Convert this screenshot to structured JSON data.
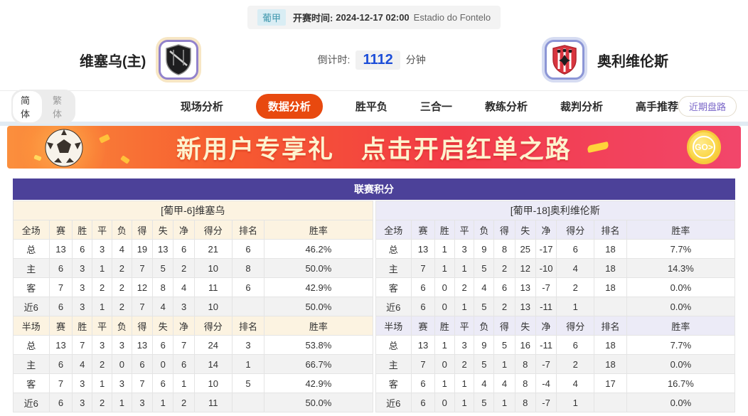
{
  "header": {
    "league_badge": "葡甲",
    "kickoff_label": "开赛时间:",
    "kickoff_time": "2024-12-17 02:00",
    "venue": "Estadio do Fontelo",
    "home_team": "维塞乌(主)",
    "away_team": "奥利维伦斯",
    "countdown_label": "倒计时:",
    "countdown_value": "1112",
    "countdown_unit": "分钟"
  },
  "nav": {
    "lang_simplified": "简体",
    "lang_traditional": "繁体",
    "items": [
      {
        "label": "现场分析",
        "active": false
      },
      {
        "label": "数据分析",
        "active": true
      },
      {
        "label": "胜平负",
        "active": false
      },
      {
        "label": "三合一",
        "active": false
      },
      {
        "label": "教练分析",
        "active": false
      },
      {
        "label": "裁判分析",
        "active": false
      },
      {
        "label": "高手推荐",
        "active": false
      }
    ],
    "recent_trends": "近期盘路"
  },
  "banner": {
    "text_left": "新用户专享礼",
    "text_right": "点击开启红单之路",
    "go_label": "GO>"
  },
  "league_table": {
    "title": "联赛积分",
    "sides": [
      {
        "id": "home",
        "theme": "cream",
        "team_header": "[葡甲-6]维塞乌",
        "sections": [
          {
            "first_col": "全场",
            "columns": [
              "赛",
              "胜",
              "平",
              "负",
              "得",
              "失",
              "净",
              "得分",
              "排名",
              "胜率"
            ],
            "rows": [
              {
                "label": "总",
                "key": "total",
                "values": [
                  "13",
                  "6",
                  "3",
                  "4",
                  "19",
                  "13",
                  "6",
                  "21",
                  "6",
                  "46.2%"
                ]
              },
              {
                "label": "主",
                "key": "home",
                "values": [
                  "6",
                  "3",
                  "1",
                  "2",
                  "7",
                  "5",
                  "2",
                  "10",
                  "8",
                  "50.0%"
                ]
              },
              {
                "label": "客",
                "key": "away",
                "values": [
                  "7",
                  "3",
                  "2",
                  "2",
                  "12",
                  "8",
                  "4",
                  "11",
                  "6",
                  "42.9%"
                ]
              },
              {
                "label": "近6",
                "key": "recent",
                "values": [
                  "6",
                  "3",
                  "1",
                  "2",
                  "7",
                  "4",
                  "3",
                  "10",
                  "",
                  "50.0%"
                ]
              }
            ]
          },
          {
            "first_col": "半场",
            "columns": [
              "赛",
              "胜",
              "平",
              "负",
              "得",
              "失",
              "净",
              "得分",
              "排名",
              "胜率"
            ],
            "rows": [
              {
                "label": "总",
                "key": "total",
                "values": [
                  "13",
                  "7",
                  "3",
                  "3",
                  "13",
                  "6",
                  "7",
                  "24",
                  "3",
                  "53.8%"
                ]
              },
              {
                "label": "主",
                "key": "home",
                "values": [
                  "6",
                  "4",
                  "2",
                  "0",
                  "6",
                  "0",
                  "6",
                  "14",
                  "1",
                  "66.7%"
                ]
              },
              {
                "label": "客",
                "key": "away",
                "values": [
                  "7",
                  "3",
                  "1",
                  "3",
                  "7",
                  "6",
                  "1",
                  "10",
                  "5",
                  "42.9%"
                ]
              },
              {
                "label": "近6",
                "key": "recent",
                "values": [
                  "6",
                  "3",
                  "2",
                  "1",
                  "3",
                  "1",
                  "2",
                  "11",
                  "",
                  "50.0%"
                ]
              }
            ]
          }
        ]
      },
      {
        "id": "away",
        "theme": "lav",
        "team_header": "[葡甲-18]奥利维伦斯",
        "sections": [
          {
            "first_col": "全场",
            "columns": [
              "赛",
              "胜",
              "平",
              "负",
              "得",
              "失",
              "净",
              "得分",
              "排名",
              "胜率"
            ],
            "rows": [
              {
                "label": "总",
                "key": "total",
                "values": [
                  "13",
                  "1",
                  "3",
                  "9",
                  "8",
                  "25",
                  "-17",
                  "6",
                  "18",
                  "7.7%"
                ]
              },
              {
                "label": "主",
                "key": "home",
                "values": [
                  "7",
                  "1",
                  "1",
                  "5",
                  "2",
                  "12",
                  "-10",
                  "4",
                  "18",
                  "14.3%"
                ]
              },
              {
                "label": "客",
                "key": "away",
                "values": [
                  "6",
                  "0",
                  "2",
                  "4",
                  "6",
                  "13",
                  "-7",
                  "2",
                  "18",
                  "0.0%"
                ]
              },
              {
                "label": "近6",
                "key": "recent",
                "values": [
                  "6",
                  "0",
                  "1",
                  "5",
                  "2",
                  "13",
                  "-11",
                  "1",
                  "",
                  "0.0%"
                ]
              }
            ]
          },
          {
            "first_col": "半场",
            "columns": [
              "赛",
              "胜",
              "平",
              "负",
              "得",
              "失",
              "净",
              "得分",
              "排名",
              "胜率"
            ],
            "rows": [
              {
                "label": "总",
                "key": "total",
                "values": [
                  "13",
                  "1",
                  "3",
                  "9",
                  "5",
                  "16",
                  "-11",
                  "6",
                  "18",
                  "7.7%"
                ]
              },
              {
                "label": "主",
                "key": "home",
                "values": [
                  "7",
                  "0",
                  "2",
                  "5",
                  "1",
                  "8",
                  "-7",
                  "2",
                  "18",
                  "0.0%"
                ]
              },
              {
                "label": "客",
                "key": "away",
                "values": [
                  "6",
                  "1",
                  "1",
                  "4",
                  "4",
                  "8",
                  "-4",
                  "4",
                  "17",
                  "16.7%"
                ]
              },
              {
                "label": "近6",
                "key": "recent",
                "values": [
                  "6",
                  "0",
                  "1",
                  "5",
                  "1",
                  "8",
                  "-7",
                  "1",
                  "",
                  "0.0%"
                ]
              }
            ]
          }
        ]
      }
    ]
  },
  "colors": {
    "title_purple": "#4c4199",
    "nav_active_orange": "#e8490f",
    "home_row_red": "#d43a31",
    "away_row_blue": "#1a41cc",
    "countdown_blue": "#1d4ed8",
    "cream_header": "#fcf3e1",
    "lavender_header": "#ecebf7",
    "alt_row_gray": "#f2f2f2"
  }
}
